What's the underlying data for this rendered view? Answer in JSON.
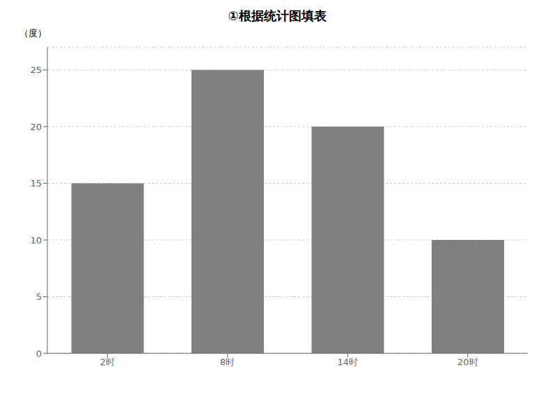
{
  "chart_data": {
    "type": "bar",
    "title": "①根据统计图填表",
    "ylabel": "（度）",
    "categories": [
      "2时",
      "8时",
      "14时",
      "20时"
    ],
    "values": [
      15,
      25,
      20,
      10
    ],
    "color": "#808080",
    "ylim": [
      0,
      27
    ],
    "yticks": [
      0,
      5,
      10,
      15,
      20,
      25
    ],
    "grid": true
  }
}
